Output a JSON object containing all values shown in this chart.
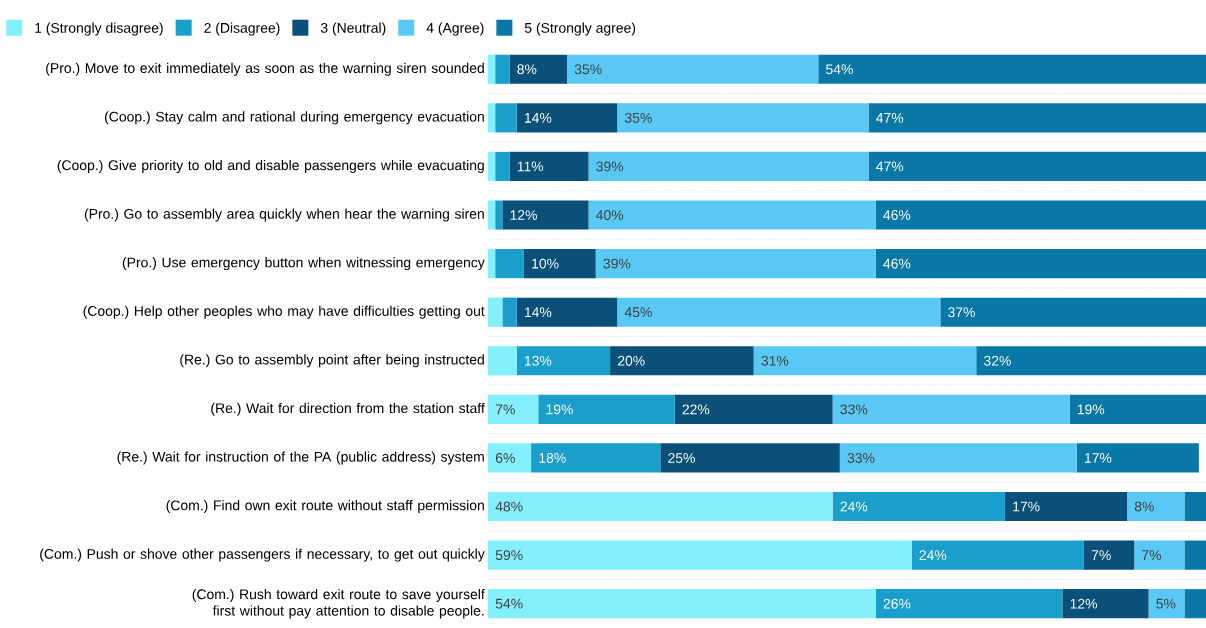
{
  "chart_data": {
    "type": "bar",
    "orientation": "horizontal",
    "stacked": true,
    "legend": "top left",
    "grid": "y",
    "categories": [
      "(Pro.) Move to exit immediately as soon as the warning siren sounded",
      "(Coop.) Stay calm and rational during emergency evacuation",
      "(Coop.) Give priority to old and disable passengers while evacuating",
      "(Pro.) Go to assembly area quickly when hear the warning siren",
      "(Pro.) Use emergency button when witnessing emergency",
      "(Coop.) Help other peoples who may have difficulties getting out",
      "(Re.) Go to assembly point after being instructed",
      "(Re.) Wait for direction from the station staff",
      "(Re.) Wait for instruction of the PA (public address) system",
      "(Com.) Find own exit route without staff permission",
      "(Com.) Push or shove other passengers if necessary, to get out quickly",
      "(Com.) Rush toward exit route to save yourself first without pay attention to disable people."
    ],
    "series": [
      {
        "name": "1 (Strongly disagree)",
        "color": "#84f0fc",
        "values": [
          1,
          1,
          1,
          1,
          1,
          2,
          4,
          7,
          6,
          48,
          59,
          54
        ],
        "value_labels": [
          null,
          null,
          null,
          null,
          null,
          null,
          null,
          "7%",
          "6%",
          "48%",
          "59%",
          "54%"
        ]
      },
      {
        "name": "2 (Disagree)",
        "color": "#1a9fcc",
        "values": [
          2,
          3,
          2,
          1,
          4,
          2,
          13,
          19,
          18,
          24,
          24,
          26
        ],
        "value_labels": [
          null,
          null,
          null,
          null,
          null,
          null,
          "13%",
          "19%",
          "18%",
          "24%",
          "24%",
          "26%"
        ]
      },
      {
        "name": "3 (Neutral)",
        "color": "#0a5078",
        "values": [
          8,
          14,
          11,
          12,
          10,
          14,
          20,
          22,
          25,
          17,
          7,
          12
        ],
        "value_labels": [
          "8%",
          "14%",
          "11%",
          "12%",
          "10%",
          "14%",
          "20%",
          "22%",
          "25%",
          "17%",
          "7%",
          "12%"
        ]
      },
      {
        "name": "4 (Agree)",
        "color": "#5ac8f4",
        "values": [
          35,
          35,
          39,
          40,
          39,
          45,
          31,
          33,
          33,
          8,
          7,
          5
        ],
        "value_labels": [
          "35%",
          "35%",
          "39%",
          "40%",
          "39%",
          "45%",
          "31%",
          "33%",
          "33%",
          "8%",
          "7%",
          "5%"
        ]
      },
      {
        "name": "5 (Strongly agree)",
        "color": "#0a78a6",
        "values": [
          54,
          47,
          47,
          46,
          46,
          37,
          32,
          19,
          17,
          3,
          3,
          3
        ],
        "value_labels": [
          "54%",
          "47%",
          "47%",
          "46%",
          "46%",
          "37%",
          "32%",
          "19%",
          "17%",
          null,
          null,
          null
        ]
      }
    ]
  }
}
